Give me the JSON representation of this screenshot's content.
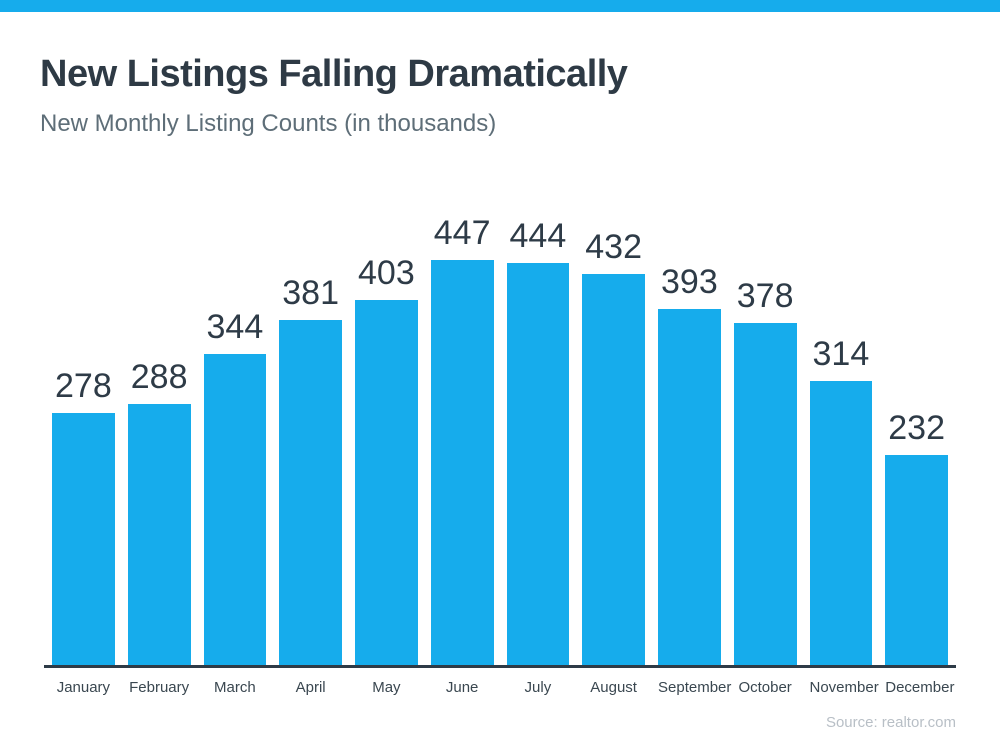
{
  "page": {
    "accent_color": "#16ACEC",
    "text_dark_color": "#2E3B47",
    "subtitle_color": "#5E6E78",
    "source_color": "#B8BFC6"
  },
  "header": {
    "title": "New Listings Falling Dramatically",
    "subtitle": "New Monthly Listing Counts (in thousands)"
  },
  "chart_data": {
    "type": "bar",
    "title": "New Listings Falling Dramatically",
    "subtitle": "New Monthly Listing Counts (in thousands)",
    "categories": [
      "January",
      "February",
      "March",
      "April",
      "May",
      "June",
      "July",
      "August",
      "September",
      "October",
      "November",
      "December"
    ],
    "values": [
      278,
      288,
      344,
      381,
      403,
      447,
      444,
      432,
      393,
      378,
      314,
      232
    ],
    "xlabel": "",
    "ylabel": "",
    "ylim": [
      0,
      470
    ],
    "grid": false,
    "legend": false,
    "data_labels": true,
    "bar_color": "#16ACEC",
    "axis_color": "#2E3B47"
  },
  "footer": {
    "source_label": "Source: realtor.com"
  }
}
